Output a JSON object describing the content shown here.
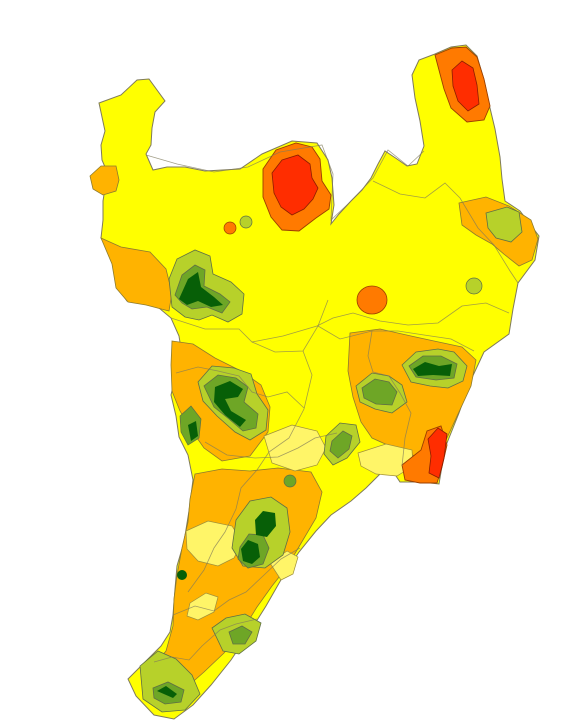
{
  "map": {
    "type": "choropleth-contour-map",
    "colors": {
      "background": "#ffffff",
      "base_yellow": "#ffff00",
      "light_yellow": "#fff568",
      "gold": "#ffd21f",
      "orange": "#ffb300",
      "deep_orange": "#ff7a00",
      "red": "#ff2d00",
      "lime": "#b7d12a",
      "olive_green": "#6ea626",
      "dark_green": "#075f07",
      "boundary": "#7f7a5b"
    },
    "legend": [],
    "labels": []
  }
}
